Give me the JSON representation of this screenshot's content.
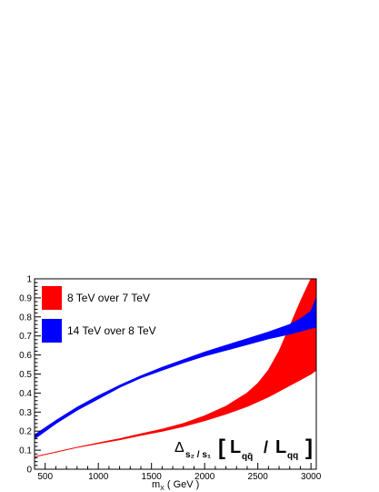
{
  "chart_data": {
    "type": "area",
    "xlabel_main": "m",
    "xlabel_sub": "X",
    "xlabel_unit": "( GeV )",
    "xlim": [
      400,
      3050
    ],
    "ylim": [
      0,
      1
    ],
    "x_ticks": [
      500,
      1000,
      1500,
      2000,
      2500,
      3000
    ],
    "x_tick_labels": [
      "500",
      "1000",
      "1500",
      "2000",
      "2500",
      "3000"
    ],
    "y_ticks": [
      0,
      0.1,
      0.2,
      0.3,
      0.4,
      0.5,
      0.6,
      0.7,
      0.8,
      0.9,
      1
    ],
    "y_tick_labels": [
      "0",
      "0.1",
      "0.2",
      "0.3",
      "0.4",
      "0.5",
      "0.6",
      "0.7",
      "0.8",
      "0.9",
      "1"
    ],
    "grid": false,
    "legend_position": "top-left",
    "annotation": {
      "delta": "Δ",
      "sub": "s₂ / s₁",
      "lbracket": "[",
      "L1": "L",
      "L1_sub": "qq̄",
      "slash": "/",
      "L2": "L",
      "L2_sub": "qq",
      "rbracket": "]"
    },
    "series": [
      {
        "name": "8 TeV over 7 TeV",
        "color": "#ff0000",
        "x": [
          400,
          600,
          800,
          1000,
          1200,
          1400,
          1600,
          1800,
          2000,
          2200,
          2400,
          2500,
          2600,
          2700,
          2800,
          2900,
          3000,
          3050
        ],
        "lower": [
          0.065,
          0.09,
          0.115,
          0.135,
          0.155,
          0.178,
          0.2,
          0.225,
          0.255,
          0.29,
          0.33,
          0.355,
          0.38,
          0.41,
          0.44,
          0.47,
          0.5,
          0.52
        ],
        "upper": [
          0.065,
          0.09,
          0.115,
          0.138,
          0.16,
          0.185,
          0.21,
          0.24,
          0.28,
          0.33,
          0.4,
          0.45,
          0.52,
          0.62,
          0.75,
          0.88,
          1.0,
          1.0
        ]
      },
      {
        "name": "14 TeV over 8 TeV",
        "color": "#0000ff",
        "x": [
          400,
          600,
          800,
          1000,
          1200,
          1400,
          1600,
          1800,
          2000,
          2200,
          2400,
          2600,
          2800,
          2900,
          3000,
          3050
        ],
        "lower": [
          0.16,
          0.24,
          0.31,
          0.37,
          0.43,
          0.48,
          0.52,
          0.56,
          0.595,
          0.625,
          0.655,
          0.685,
          0.71,
          0.725,
          0.74,
          0.745
        ],
        "upper": [
          0.18,
          0.255,
          0.325,
          0.385,
          0.44,
          0.49,
          0.535,
          0.575,
          0.615,
          0.65,
          0.685,
          0.72,
          0.76,
          0.79,
          0.83,
          0.9
        ]
      }
    ]
  }
}
